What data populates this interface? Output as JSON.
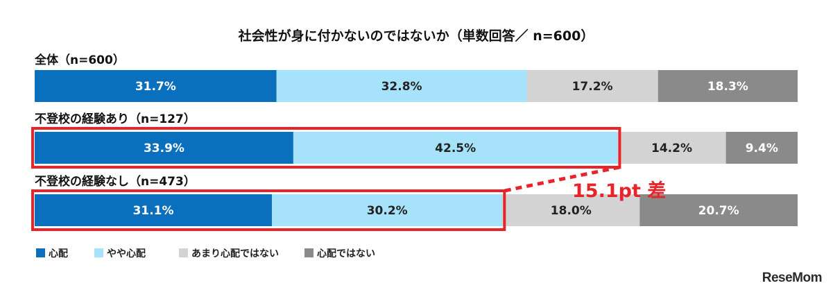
{
  "chart_data": {
    "type": "bar",
    "orientation": "horizontal-stacked-100",
    "title": "社会性が身に付かないのではないか（単数回答／ n=600）",
    "categories": [
      "全体（n=600）",
      "不登校の経験あり（n=127）",
      "不登校の経験なし（n=473）"
    ],
    "series": [
      {
        "name": "心配",
        "color": "#0a6fbd",
        "label_color": "#ffffff",
        "values": [
          31.7,
          33.9,
          31.1
        ],
        "labels": [
          "31.7%",
          "33.9%",
          "31.1%"
        ]
      },
      {
        "name": "やや心配",
        "color": "#a6e3fa",
        "label_color": "#222222",
        "values": [
          32.8,
          42.5,
          30.2
        ],
        "labels": [
          "32.8%",
          "42.5%",
          "30.2%"
        ]
      },
      {
        "name": "あまり心配ではない",
        "color": "#d3d3d3",
        "label_color": "#222222",
        "values": [
          17.2,
          14.2,
          18.0
        ],
        "labels": [
          "17.2%",
          "14.2%",
          "18.0%"
        ]
      },
      {
        "name": "心配ではない",
        "color": "#8a8a8a",
        "label_color": "#ffffff",
        "values": [
          18.3,
          9.4,
          20.7
        ],
        "labels": [
          "18.3%",
          "9.4%",
          "20.7%"
        ]
      }
    ],
    "annotation": {
      "text": "15.1pt 差",
      "color": "#e8242b"
    },
    "legend_position": "bottom-left"
  },
  "watermark": "ReseMom"
}
